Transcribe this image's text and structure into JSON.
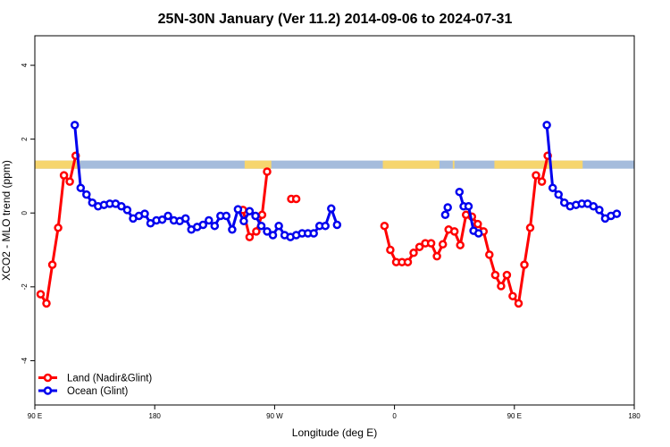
{
  "chart_data": {
    "type": "line",
    "title": "25N-30N January (Ver 11.2)   2014-09-06 to 2024-07-31",
    "xlabel": "Longitude (deg E)",
    "ylabel": "XCO2 - MLO trend (ppm)",
    "xlim": [
      90,
      450
    ],
    "ylim": [
      -5.2,
      4.8
    ],
    "xticks": [
      {
        "value": 90,
        "label": "90 E"
      },
      {
        "value": 162,
        "label": "180"
      },
      {
        "value": 234,
        "label": "90 W"
      },
      {
        "value": 306,
        "label": "0"
      },
      {
        "value": 378,
        "label": "90 E"
      },
      {
        "value": 450,
        "label": "180"
      }
    ],
    "yticks": [
      {
        "value": 4,
        "label": "4"
      },
      {
        "value": 2,
        "label": "2"
      },
      {
        "value": 0,
        "label": "0"
      },
      {
        "value": -2,
        "label": "-2"
      },
      {
        "value": -4,
        "label": "-4"
      }
    ],
    "land_strip": {
      "y_low": 1.2,
      "y_high": 1.42,
      "ocean_color": "#a5bcdc",
      "land_color": "#f6d56e",
      "land_ranges": [
        [
          90,
          117
        ],
        [
          216,
          232
        ],
        [
          299,
          333
        ],
        [
          341,
          342
        ],
        [
          366,
          419
        ]
      ]
    },
    "series": [
      {
        "name": "Land (Nadir&Glint)",
        "color": "#ff0000",
        "segments": [
          [
            [
              93.5,
              -2.2
            ],
            [
              97,
              -2.45
            ],
            [
              100.5,
              -1.4
            ],
            [
              104,
              -0.4
            ],
            [
              107.5,
              1.02
            ],
            [
              111,
              0.85
            ],
            [
              114.5,
              1.55
            ]
          ],
          [
            [
              215,
              0.08
            ],
            [
              219,
              -0.65
            ],
            [
              223,
              -0.5
            ],
            [
              226.5,
              -0.05
            ],
            [
              229.5,
              1.12
            ]
          ],
          [
            [
              244,
              0.38
            ],
            [
              247,
              0.38
            ]
          ],
          [
            [
              300,
              -0.35
            ],
            [
              303.5,
              -1.0
            ],
            [
              307,
              -1.33
            ],
            [
              310.5,
              -1.33
            ],
            [
              314,
              -1.33
            ],
            [
              317.5,
              -1.08
            ],
            [
              321,
              -0.92
            ],
            [
              324.5,
              -0.82
            ],
            [
              328,
              -0.82
            ],
            [
              331.5,
              -1.17
            ],
            [
              335,
              -0.85
            ],
            [
              338.5,
              -0.45
            ],
            [
              342,
              -0.5
            ],
            [
              345.5,
              -0.87
            ],
            [
              349,
              -0.05
            ],
            [
              352.5,
              -0.1
            ],
            [
              356,
              -0.3
            ],
            [
              359.5,
              -0.5
            ],
            [
              363,
              -1.13
            ],
            [
              366.5,
              -1.68
            ],
            [
              370,
              -1.98
            ],
            [
              373.5,
              -1.68
            ],
            [
              377,
              -2.25
            ],
            [
              380.5,
              -2.45
            ],
            [
              384,
              -1.4
            ],
            [
              387.5,
              -0.4
            ],
            [
              391,
              1.02
            ],
            [
              394.5,
              0.85
            ],
            [
              398,
              1.55
            ]
          ]
        ]
      },
      {
        "name": "Ocean (Glint)",
        "color": "#0000ee",
        "segments": [
          [
            [
              114,
              2.38
            ],
            [
              117.5,
              0.68
            ],
            [
              121,
              0.5
            ],
            [
              124.5,
              0.28
            ],
            [
              128,
              0.18
            ],
            [
              131.5,
              0.22
            ],
            [
              135,
              0.25
            ],
            [
              138.5,
              0.25
            ],
            [
              142,
              0.18
            ],
            [
              145.5,
              0.08
            ],
            [
              149,
              -0.15
            ],
            [
              152.5,
              -0.08
            ],
            [
              156,
              -0.02
            ],
            [
              159.5,
              -0.28
            ],
            [
              163,
              -0.2
            ],
            [
              166.5,
              -0.18
            ],
            [
              170,
              -0.08
            ],
            [
              173.5,
              -0.2
            ],
            [
              177,
              -0.22
            ],
            [
              180.5,
              -0.15
            ],
            [
              184,
              -0.45
            ],
            [
              187.5,
              -0.38
            ],
            [
              191,
              -0.32
            ],
            [
              194.5,
              -0.2
            ],
            [
              198,
              -0.35
            ],
            [
              201.5,
              -0.08
            ],
            [
              205,
              -0.08
            ],
            [
              208.5,
              -0.45
            ],
            [
              212,
              0.1
            ],
            [
              215.5,
              -0.22
            ],
            [
              219,
              0.05
            ],
            [
              222.5,
              -0.08
            ],
            [
              226,
              -0.35
            ],
            [
              229.5,
              -0.5
            ],
            [
              233,
              -0.6
            ],
            [
              236.5,
              -0.35
            ],
            [
              240,
              -0.6
            ],
            [
              243.5,
              -0.65
            ],
            [
              247,
              -0.6
            ],
            [
              250.5,
              -0.55
            ],
            [
              254,
              -0.55
            ],
            [
              257.5,
              -0.55
            ],
            [
              261,
              -0.35
            ],
            [
              264.5,
              -0.35
            ],
            [
              268,
              0.12
            ],
            [
              271.5,
              -0.32
            ]
          ],
          [
            [
              336.5,
              -0.05
            ],
            [
              338,
              0.15
            ]
          ],
          [
            [
              345,
              0.57
            ],
            [
              347.5,
              0.18
            ],
            [
              350.5,
              0.18
            ],
            [
              353.5,
              -0.48
            ],
            [
              356.5,
              -0.55
            ]
          ],
          [
            [
              397.5,
              2.38
            ],
            [
              401,
              0.68
            ],
            [
              404.5,
              0.5
            ],
            [
              408,
              0.28
            ],
            [
              411.5,
              0.18
            ],
            [
              415,
              0.22
            ],
            [
              418.5,
              0.25
            ],
            [
              422,
              0.25
            ],
            [
              425.5,
              0.18
            ],
            [
              429,
              0.08
            ],
            [
              432.5,
              -0.15
            ],
            [
              436,
              -0.08
            ],
            [
              439.5,
              -0.02
            ]
          ]
        ]
      }
    ],
    "legend": {
      "position": "bottom-left",
      "entries": [
        "Land (Nadir&Glint)",
        "Ocean (Glint)"
      ]
    }
  }
}
